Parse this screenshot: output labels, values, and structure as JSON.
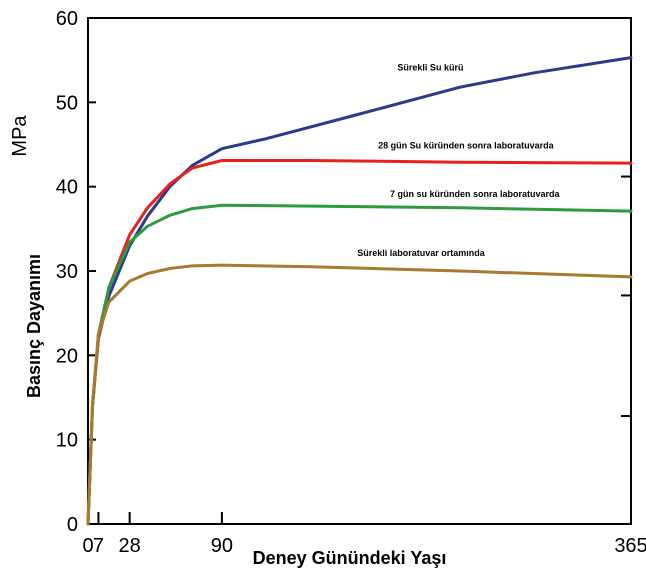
{
  "chart_data": {
    "type": "line",
    "title": "",
    "xlabel": "Deney Günündeki Yaşı",
    "ylabel": "Basınç Dayanımı",
    "yunit": "MPa",
    "xlim": [
      0,
      365
    ],
    "ylim": [
      0,
      60
    ],
    "xticks": [
      0,
      7,
      28,
      90,
      365
    ],
    "xtick_labels": [
      "0",
      "7",
      "28",
      "90",
      "365"
    ],
    "yticks": [
      0,
      10,
      20,
      30,
      40,
      50,
      60
    ],
    "ytick_labels": [
      "0",
      "10",
      "20",
      "30",
      "40",
      "50",
      "60"
    ],
    "grid": false,
    "legend": "none",
    "series": [
      {
        "name": "Sürekli Su kürü",
        "color": "#2b3a8a",
        "x": [
          0,
          3,
          7,
          14,
          28,
          40,
          55,
          70,
          90,
          120,
          180,
          250,
          300,
          365
        ],
        "y": [
          0,
          14,
          22,
          27,
          33,
          36.5,
          40,
          42.5,
          44.5,
          45.7,
          48.5,
          51.8,
          53.5,
          55.3
        ]
      },
      {
        "name": "28 gün Su küründen sonra laboratuvarda",
        "color": "#e8201e",
        "x": [
          0,
          3,
          7,
          14,
          28,
          40,
          55,
          70,
          90,
          150,
          250,
          365
        ],
        "y": [
          0,
          14,
          22,
          28,
          34.3,
          37.5,
          40.3,
          42.2,
          43.1,
          43.1,
          42.9,
          42.8
        ]
      },
      {
        "name": "7 gün su küründen sonra laboratuvarda",
        "color": "#2e9a3e",
        "x": [
          0,
          3,
          7,
          14,
          28,
          40,
          55,
          70,
          90,
          150,
          250,
          365
        ],
        "y": [
          0,
          14,
          22.5,
          28,
          33.4,
          35.3,
          36.6,
          37.4,
          37.8,
          37.7,
          37.5,
          37.1
        ]
      },
      {
        "name": "Sürekli laboratuvar ortamında",
        "color": "#a87a30",
        "x": [
          0,
          3,
          7,
          14,
          28,
          40,
          55,
          70,
          90,
          150,
          250,
          365
        ],
        "y": [
          0,
          14,
          22.5,
          26.3,
          28.8,
          29.7,
          30.3,
          30.6,
          30.7,
          30.5,
          30,
          29.3
        ]
      }
    ],
    "annotations": [
      {
        "text": "Sürekli Su kürü",
        "x": 208,
        "y": 53.8,
        "anchor": "start"
      },
      {
        "text": "28 gün Su küründen sonra laboratuvarda",
        "x": 195,
        "y": 44.5,
        "anchor": "start"
      },
      {
        "text": "7 gün su küründen sonra laboratuvarda",
        "x": 203,
        "y": 38.8,
        "anchor": "start"
      },
      {
        "text": "Sürekli laboratuvar ortamında",
        "x": 181,
        "y": 31.8,
        "anchor": "start"
      }
    ]
  }
}
